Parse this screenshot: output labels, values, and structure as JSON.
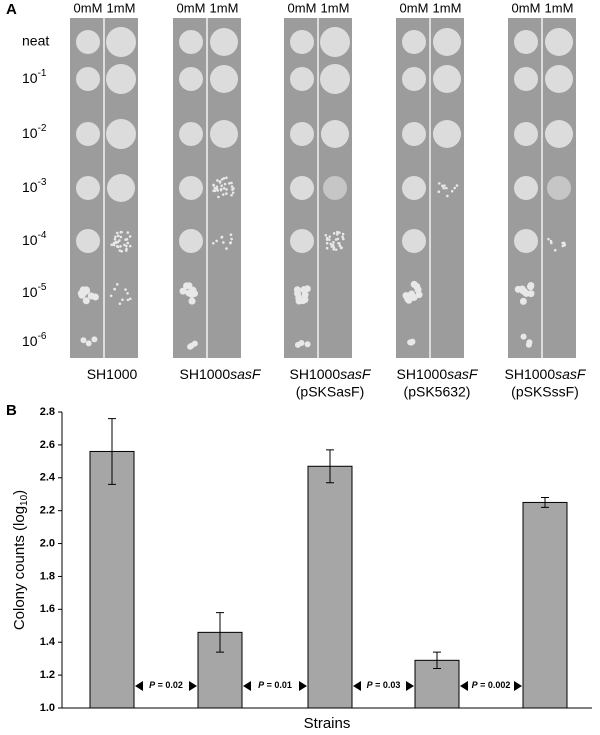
{
  "panel_a": {
    "label": "A",
    "columns": [
      "0mM",
      "1mM"
    ],
    "rows": [
      "neat",
      {
        "base": "10",
        "exp": "-1"
      },
      {
        "base": "10",
        "exp": "-2"
      },
      {
        "base": "10",
        "exp": "-3"
      },
      {
        "base": "10",
        "exp": "-4"
      },
      {
        "base": "10",
        "exp": "-5"
      },
      {
        "base": "10",
        "exp": "-6"
      }
    ]
  },
  "chart_data": {
    "type": "bar",
    "panel_label": "B",
    "categories": [
      {
        "base": "SH1000"
      },
      {
        "base": "SH1000",
        "italic": "sasF"
      },
      {
        "base": "SH1000",
        "italic": "sasF",
        "plasmid": "(pSKSasF)"
      },
      {
        "base": "SH1000",
        "italic": "sasF",
        "plasmid": "(pSK5632)"
      },
      {
        "base": "SH1000",
        "italic": "sasF",
        "plasmid": "(pSKSssF)"
      }
    ],
    "values": [
      2.56,
      1.46,
      2.47,
      1.29,
      2.25
    ],
    "errors": [
      0.2,
      0.12,
      0.1,
      0.05,
      0.03
    ],
    "color": "#a6a6a6",
    "ylim": [
      1.0,
      2.8
    ],
    "yticks": [
      {
        "value": 1,
        "label": "1.0"
      },
      1.2,
      1.4,
      1.6,
      1.8,
      {
        "value": 2,
        "label": "2.0"
      },
      2.2,
      2.4,
      2.6,
      2.8
    ],
    "ylabel": {
      "text": "Colony counts (log",
      "sub": "10",
      "end": ")"
    },
    "xlabel": "Strains",
    "annotations": [
      {
        "italic": "P",
        "text": " = 0.02"
      },
      {
        "italic": "P",
        "text": " = 0.01"
      },
      {
        "italic": "P",
        "text": " = 0.03"
      },
      {
        "italic": "P",
        "text": " = 0.002"
      }
    ],
    "grid": false
  }
}
